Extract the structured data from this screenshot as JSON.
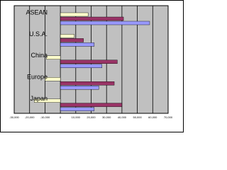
{
  "chart_data": {
    "type": "hbar",
    "categories": [
      "Japan",
      "Europe",
      "China",
      "U.S.A.",
      "ASEAN"
    ],
    "series": [
      {
        "color": "#ffffcc",
        "values": [
          -17000,
          -10000,
          -9000,
          9000,
          18000
        ]
      },
      {
        "color": "#993366",
        "values": [
          40000,
          35000,
          37000,
          15000,
          41000
        ]
      },
      {
        "color": "#9999ff",
        "values": [
          22000,
          25000,
          27000,
          22000,
          58000
        ]
      }
    ],
    "xlim": [
      -30000,
      70000
    ],
    "xticks": [
      {
        "value": -30000,
        "label": "-30,000"
      },
      {
        "value": -20000,
        "label": "-20,000"
      },
      {
        "value": -10000,
        "label": "-10,000"
      },
      0,
      {
        "value": 10000,
        "label": "10,000"
      },
      {
        "value": 20000,
        "label": "20,000"
      },
      {
        "value": 30000,
        "label": "30,000"
      },
      {
        "value": 40000,
        "label": "40,000"
      },
      {
        "value": 50000,
        "label": "50,000"
      },
      {
        "value": 60000,
        "label": "60,000"
      },
      {
        "value": 70000,
        "label": "70,000"
      }
    ],
    "grid": true,
    "plot_background": "#c0c0c0"
  }
}
